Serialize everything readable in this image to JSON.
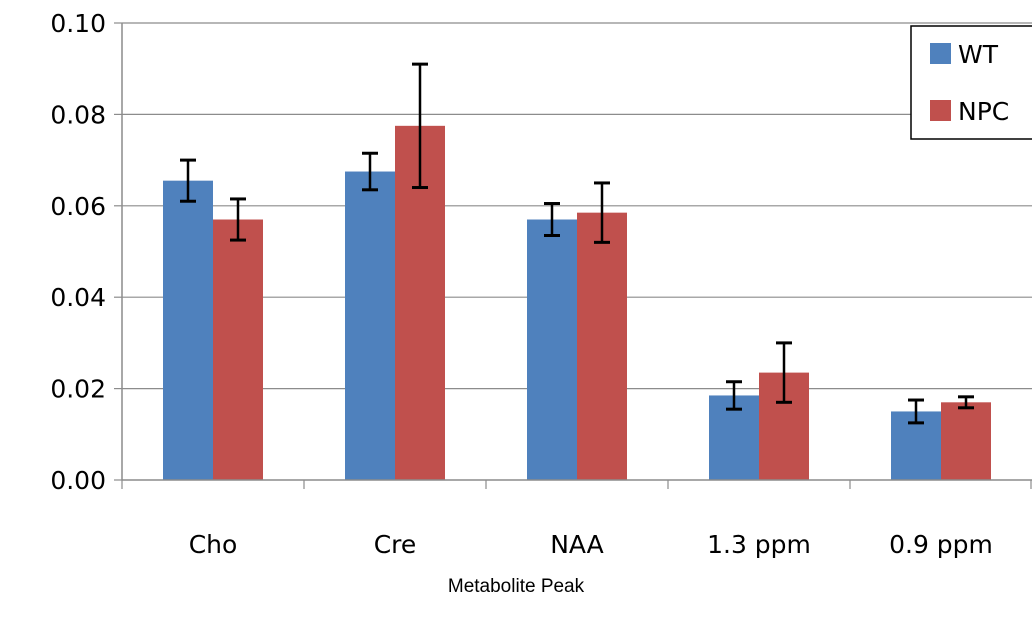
{
  "chart_data": {
    "type": "bar",
    "title": "",
    "xlabel": "Metabolite Peak",
    "ylabel": "",
    "categories": [
      "Cho",
      "Cre",
      "NAA",
      "1.3 ppm",
      "0.9 ppm"
    ],
    "series": [
      {
        "name": "WT",
        "color": "#4F81BD",
        "values": [
          0.0655,
          0.0675,
          0.057,
          0.0185,
          0.015
        ],
        "errors": [
          0.0045,
          0.004,
          0.0035,
          0.003,
          0.0025
        ]
      },
      {
        "name": "NPC",
        "color": "#C0504D",
        "values": [
          0.057,
          0.0775,
          0.0585,
          0.0235,
          0.017
        ],
        "errors": [
          0.0045,
          0.0135,
          0.0065,
          0.0065,
          0.0012
        ]
      }
    ],
    "ylim": [
      0,
      0.1
    ],
    "yticks": [
      "0.00",
      "0.02",
      "0.04",
      "0.06",
      "0.08",
      "0.10"
    ],
    "grid": true,
    "legend_position": "top-right"
  }
}
